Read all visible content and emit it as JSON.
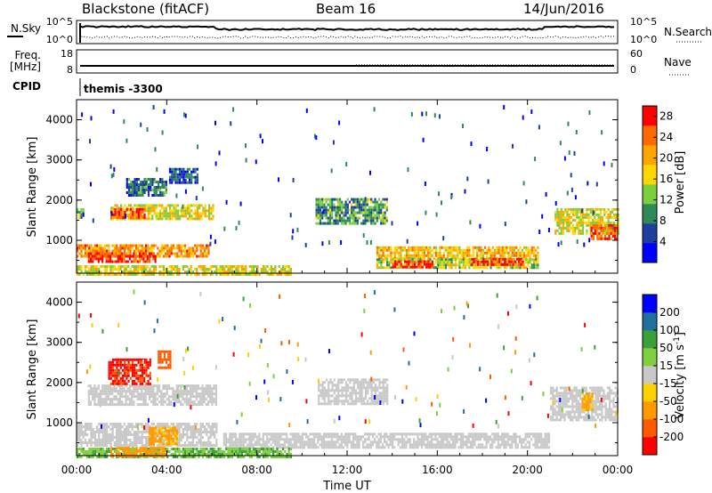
{
  "header": {
    "station": "Blackstone (fitACF)",
    "beam": "Beam 16",
    "date": "14/Jun/2016"
  },
  "summary_panel": {
    "left_labels": {
      "nsky": "N.Sky",
      "freq": "Freq.",
      "freq_unit": "[MHz]",
      "cpid": "CPID"
    },
    "right_labels": {
      "nsearch": "N.Search",
      "nave": "Nave"
    },
    "noise_ticks": [
      "10^5",
      "10^0"
    ],
    "freq_ticks": [
      "18",
      "8"
    ],
    "nave_ticks": [
      "60",
      "0"
    ],
    "cpid_text": "themis -3300"
  },
  "colors": {
    "power_scale": [
      "#0000ff",
      "#1f3f9f",
      "#2e8b57",
      "#7bcf3f",
      "#ffd700",
      "#ffa500",
      "#ff6a00",
      "#ff0000"
    ],
    "velocity_scale": [
      "#ff0000",
      "#ff5a00",
      "#ff9a00",
      "#ffd000",
      "#c8c8c8",
      "#7fcf3f",
      "#3aa03a",
      "#1f6f9f",
      "#0000ff"
    ],
    "ground_scatter": "#c8c8c8"
  },
  "chart_data": [
    {
      "type": "heatmap",
      "title": "",
      "panel": "power",
      "xlabel": "",
      "ylabel": "Slant Range [km]",
      "x_ticks": [
        "00:00",
        "04:00",
        "08:00",
        "12:00",
        "16:00",
        "20:00",
        "00:00"
      ],
      "y_ticks": [
        1000,
        2000,
        3000,
        4000
      ],
      "xlim_hours": [
        0,
        24
      ],
      "ylim_km": [
        180,
        4500
      ],
      "colorbar": {
        "label": "Power [dB]",
        "ticks": [
          4,
          8,
          12,
          16,
          20,
          24,
          28
        ],
        "range": [
          0,
          30
        ]
      },
      "regions": [
        {
          "t0": 0.0,
          "t1": 5.9,
          "r0": 580,
          "r1": 900,
          "level": 0.72
        },
        {
          "t0": 0.5,
          "t1": 3.5,
          "r0": 450,
          "r1": 700,
          "level": 0.9
        },
        {
          "t0": 0.0,
          "t1": 9.5,
          "r0": 180,
          "r1": 380,
          "level": 0.55
        },
        {
          "t0": 1.5,
          "t1": 6.1,
          "r0": 1550,
          "r1": 1900,
          "level": 0.55
        },
        {
          "t0": 1.5,
          "t1": 3.0,
          "r0": 1600,
          "r1": 1800,
          "level": 0.85
        },
        {
          "t0": 2.2,
          "t1": 4.0,
          "r0": 2150,
          "r1": 2550,
          "level": 0.25
        },
        {
          "t0": 4.1,
          "t1": 5.4,
          "r0": 2450,
          "r1": 2800,
          "level": 0.2
        },
        {
          "t0": 10.6,
          "t1": 13.8,
          "r0": 1450,
          "r1": 2050,
          "level": 0.35
        },
        {
          "t0": 13.3,
          "t1": 20.5,
          "r0": 550,
          "r1": 850,
          "level": 0.65
        },
        {
          "t0": 13.3,
          "t1": 20.5,
          "r0": 300,
          "r1": 550,
          "level": 0.5
        },
        {
          "t0": 14.0,
          "t1": 15.8,
          "r0": 350,
          "r1": 500,
          "level": 0.92
        },
        {
          "t0": 17.5,
          "t1": 19.8,
          "r0": 380,
          "r1": 560,
          "level": 0.88
        },
        {
          "t0": 21.2,
          "t1": 24.0,
          "r0": 1150,
          "r1": 1800,
          "level": 0.55
        },
        {
          "t0": 22.8,
          "t1": 24.0,
          "r0": 1050,
          "r1": 1400,
          "level": 0.82
        },
        {
          "t0": 0.0,
          "t1": 0.3,
          "r0": 1600,
          "r1": 1800,
          "level": 0.4
        }
      ]
    },
    {
      "type": "heatmap",
      "title": "",
      "panel": "velocity",
      "xlabel": "Time UT",
      "ylabel": "Slant Range [km]",
      "x_ticks": [
        "00:00",
        "04:00",
        "08:00",
        "12:00",
        "16:00",
        "20:00",
        "00:00"
      ],
      "y_ticks": [
        1000,
        2000,
        3000,
        4000
      ],
      "xlim_hours": [
        0,
        24
      ],
      "ylim_km": [
        180,
        4500
      ],
      "colorbar": {
        "label": "Velocity [m s^-1]",
        "ticks": [
          200,
          100,
          50,
          15,
          -15,
          -50,
          -100,
          -200
        ],
        "range": [
          -250,
          250
        ]
      },
      "regions": [
        {
          "t0": 0.0,
          "t1": 6.2,
          "r0": 450,
          "r1": 1000,
          "kind": "gs"
        },
        {
          "t0": 0.5,
          "t1": 6.2,
          "r0": 1450,
          "r1": 1950,
          "kind": "gs"
        },
        {
          "t0": 6.5,
          "t1": 21.0,
          "r0": 380,
          "r1": 750,
          "kind": "gs"
        },
        {
          "t0": 10.7,
          "t1": 13.8,
          "r0": 1450,
          "r1": 2100,
          "kind": "gs"
        },
        {
          "t0": 21.0,
          "t1": 24.0,
          "r0": 1100,
          "r1": 1900,
          "kind": "gs"
        },
        {
          "t0": 1.4,
          "t1": 3.3,
          "r0": 2000,
          "r1": 2600,
          "kind": "vel",
          "value": -210
        },
        {
          "t0": 3.6,
          "t1": 4.2,
          "r0": 2350,
          "r1": 2800,
          "kind": "vel",
          "value": -180
        },
        {
          "t0": 3.2,
          "t1": 4.5,
          "r0": 450,
          "r1": 900,
          "kind": "vel",
          "value": -60
        },
        {
          "t0": 0.0,
          "t1": 9.5,
          "r0": 180,
          "r1": 380,
          "kind": "vel",
          "value": 45
        },
        {
          "t0": 1.5,
          "t1": 4.0,
          "r0": 180,
          "r1": 400,
          "kind": "vel",
          "value": -70
        },
        {
          "t0": 22.4,
          "t1": 22.9,
          "r0": 1350,
          "r1": 1750,
          "kind": "vel",
          "value": -60
        }
      ]
    }
  ]
}
